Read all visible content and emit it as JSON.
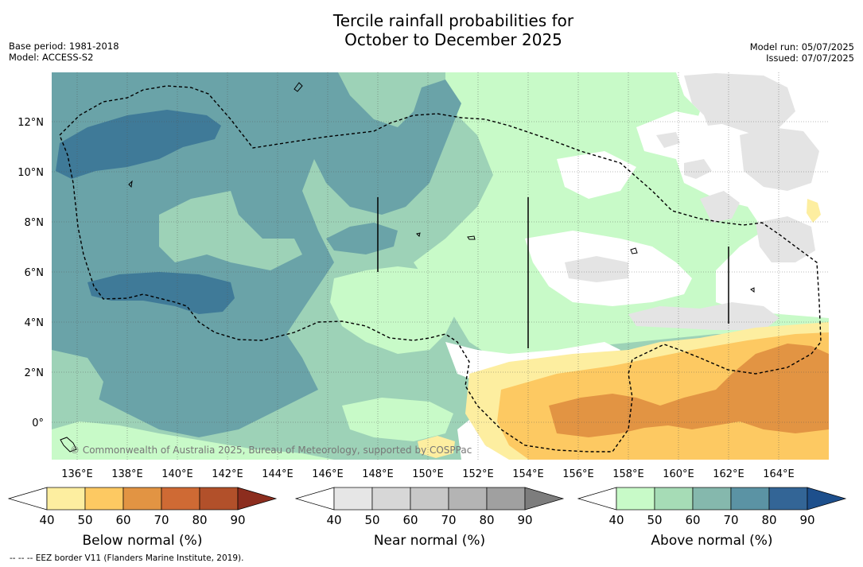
{
  "title_line1": "Tercile rainfall probabilities for",
  "title_line2": "October to December 2025",
  "base_period": "Base period: 1981-2018",
  "model": "Model: ACCESS-S2",
  "model_run": "Model run: 05/07/2025",
  "issued": "Issued: 07/07/2025",
  "copyright": "© Commonwealth of Australia 2025, Bureau of Meteorology, supported by COSPPac",
  "footnote": "-- -- -- EEZ border V11 (Flanders Marine Institute, 2019).",
  "lon_ticks": [
    "136°E",
    "138°E",
    "140°E",
    "142°E",
    "144°E",
    "146°E",
    "148°E",
    "150°E",
    "152°E",
    "154°E",
    "156°E",
    "158°E",
    "160°E",
    "162°E",
    "164°E"
  ],
  "lat_ticks": [
    "12°N",
    "10°N",
    "8°N",
    "6°N",
    "4°N",
    "2°N",
    "0°"
  ],
  "colorbars": [
    {
      "label": "Below normal (%)",
      "ticks": [
        "40",
        "50",
        "60",
        "70",
        "80",
        "90"
      ],
      "colors": [
        "#ffffff",
        "#fdeea0",
        "#fdc962",
        "#e29443",
        "#cf6a34",
        "#b2502a",
        "#8c2d1e"
      ]
    },
    {
      "label": "Near normal (%)",
      "ticks": [
        "40",
        "50",
        "60",
        "70",
        "80",
        "90"
      ],
      "colors": [
        "#ffffff",
        "#e6e6e6",
        "#d7d7d7",
        "#c8c8c8",
        "#b4b4b4",
        "#a0a0a0",
        "#7d7d7d"
      ]
    },
    {
      "label": "Above normal (%)",
      "ticks": [
        "40",
        "50",
        "60",
        "70",
        "80",
        "90"
      ],
      "colors": [
        "#ffffff",
        "#c8fac8",
        "#a6dcb6",
        "#85b8ad",
        "#5b93a4",
        "#336596",
        "#1d4f8c"
      ]
    }
  ]
}
